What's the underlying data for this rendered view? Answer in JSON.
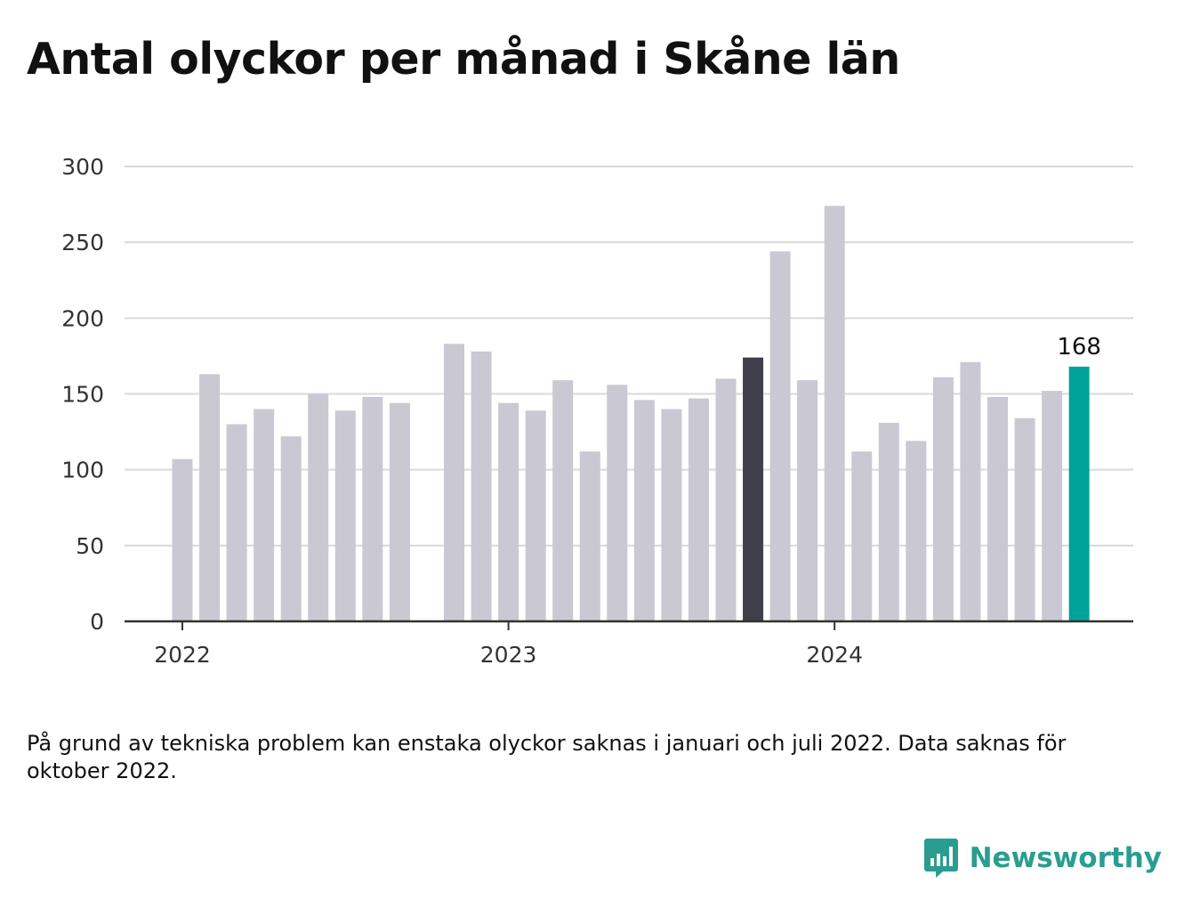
{
  "title": "Antal olyckor per månad i Skåne län",
  "footnote": "På grund av tekniska problem kan enstaka olyckor saknas i januari och juli 2022. Data saknas för oktober 2022.",
  "brand": {
    "name": "Newsworthy",
    "icon": "newsworthy-logo-icon"
  },
  "colors": {
    "bar": "#c9c8d3",
    "bar_highlight_dark": "#403f4c",
    "bar_highlight_latest": "#00a39a",
    "gridline": "#d9d9d9",
    "axis": "#333333",
    "brand": "#2a9d8f"
  },
  "chart_data": {
    "type": "bar",
    "title": "Antal olyckor per månad i Skåne län",
    "xlabel": "",
    "ylabel": "",
    "ylim": [
      0,
      300
    ],
    "yticks": [
      0,
      50,
      100,
      150,
      200,
      250,
      300
    ],
    "xticks": [
      {
        "label": "2022",
        "month": "2022-01"
      },
      {
        "label": "2023",
        "month": "2023-01"
      },
      {
        "label": "2024",
        "month": "2024-01"
      }
    ],
    "grid": true,
    "categories": [
      "2022-01",
      "2022-02",
      "2022-03",
      "2022-04",
      "2022-05",
      "2022-06",
      "2022-07",
      "2022-08",
      "2022-09",
      "2022-10",
      "2022-11",
      "2022-12",
      "2023-01",
      "2023-02",
      "2023-03",
      "2023-04",
      "2023-05",
      "2023-06",
      "2023-07",
      "2023-08",
      "2023-09",
      "2023-10",
      "2023-11",
      "2023-12",
      "2024-01",
      "2024-02",
      "2024-03",
      "2024-04",
      "2024-05",
      "2024-06",
      "2024-07",
      "2024-08",
      "2024-09",
      "2024-10"
    ],
    "values": [
      107,
      163,
      130,
      140,
      122,
      150,
      139,
      148,
      144,
      null,
      183,
      178,
      144,
      139,
      159,
      112,
      156,
      146,
      140,
      147,
      160,
      174,
      244,
      159,
      274,
      112,
      131,
      119,
      161,
      171,
      148,
      134,
      152,
      168
    ],
    "highlight": {
      "2023-10": "dark",
      "2024-10": "latest"
    },
    "annotations": [
      {
        "category": "2024-10",
        "text": "168"
      }
    ]
  }
}
